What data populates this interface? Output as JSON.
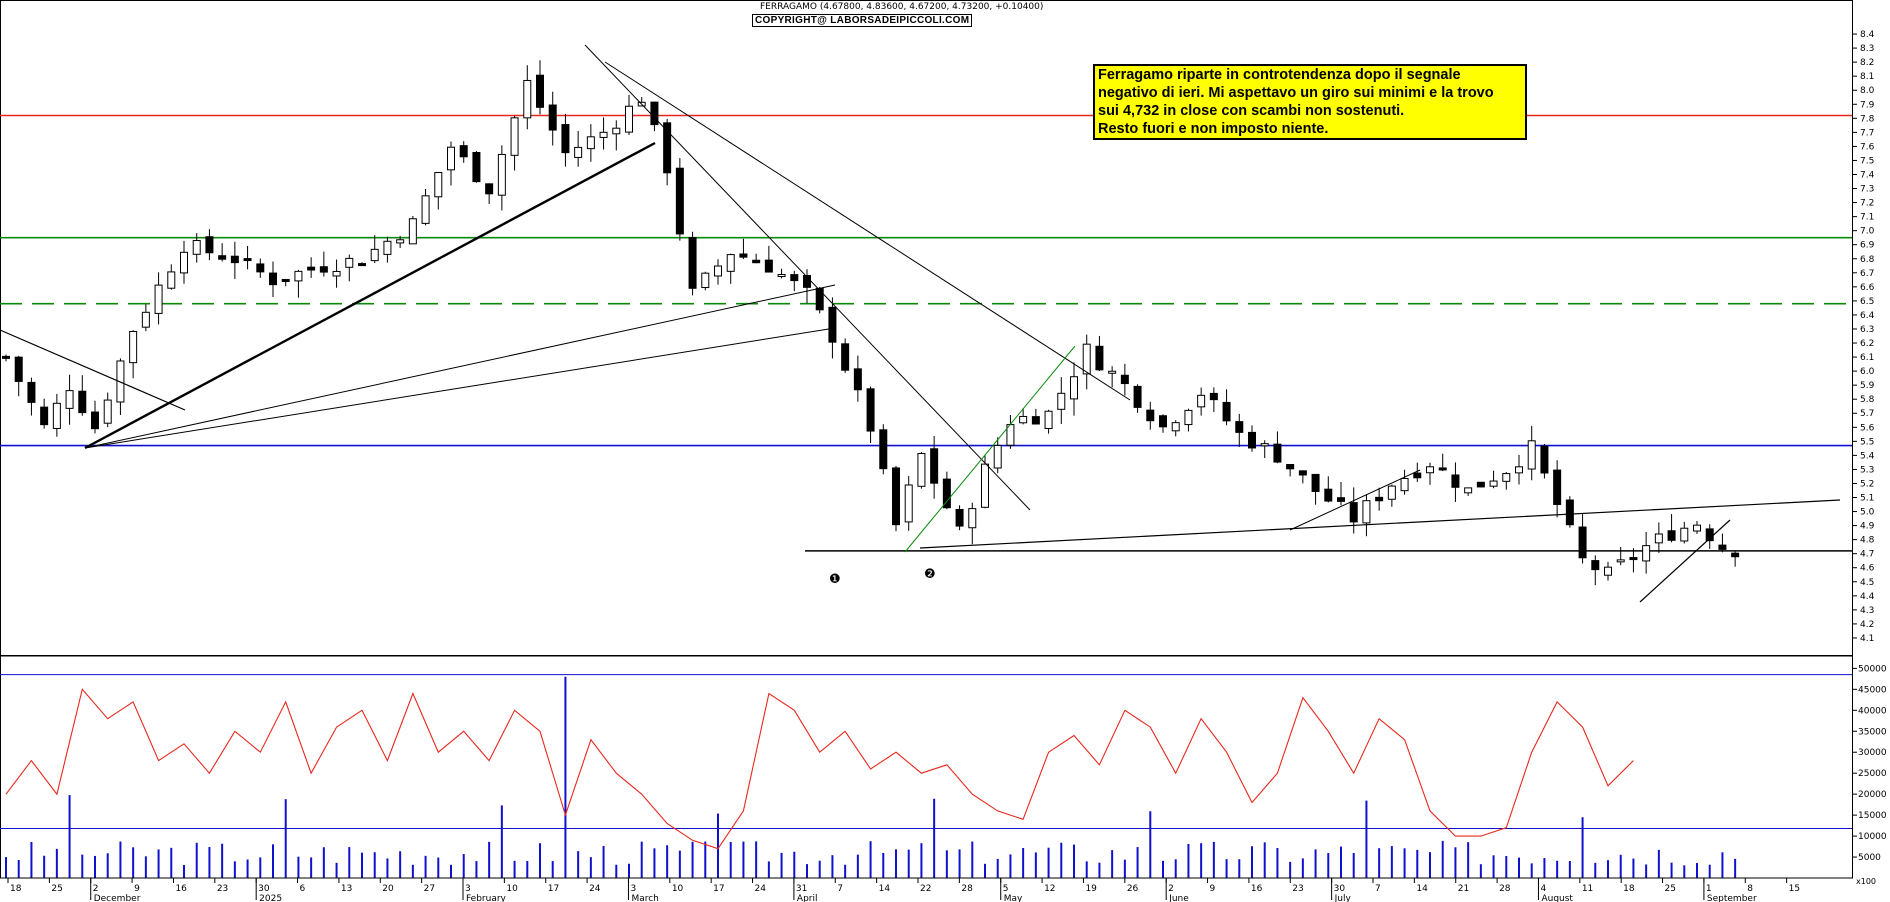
{
  "header": {
    "title": "FERRAGAMO (4.67800, 4.83600, 4.67200, 4.73200, +0.10400)",
    "copyright": "COPYRIGHT@ LABORSADEIPICCOLI.COM"
  },
  "note": {
    "lines": [
      "Ferragamo riparte in controtendenza dopo il segnale",
      "negativo di ieri. Mi aspettavo un giro sui minimi e la trovo",
      "sui 4,732 in close con scambi non sostenuti.",
      "Resto fuori e non imposto niente."
    ]
  },
  "markers": [
    "❶",
    "❷"
  ],
  "colors": {
    "candle": "#000000",
    "red_level": "#e8281e",
    "green_level": "#0a8a0a",
    "blue_level": "#1010d0",
    "oscillator": "#e8281e",
    "volume": "#1010d0",
    "note_bg": "#ffff00"
  },
  "chart_data": {
    "type": "candlestick",
    "price_axis": {
      "range": [
        4.0,
        8.5
      ],
      "ticks": [
        "4.1",
        "4.2",
        "4.3",
        "4.4",
        "4.5",
        "4.6",
        "4.7",
        "4.8",
        "4.9",
        "5.0",
        "5.1",
        "5.2",
        "5.3",
        "5.4",
        "5.5",
        "5.6",
        "5.7",
        "5.8",
        "5.9",
        "6.0",
        "6.1",
        "6.2",
        "6.3",
        "6.4",
        "6.5",
        "6.6",
        "6.7",
        "6.8",
        "6.9",
        "7.0",
        "7.1",
        "7.2",
        "7.3",
        "7.4",
        "7.5",
        "7.6",
        "7.7",
        "7.8",
        "7.9",
        "8.0",
        "8.1",
        "8.2",
        "8.3",
        "8.4"
      ]
    },
    "lower_axis": {
      "range": [
        0,
        52000
      ],
      "ticks": [
        "5000",
        "10000",
        "15000",
        "20000",
        "25000",
        "30000",
        "35000",
        "40000",
        "45000",
        "50000"
      ],
      "corner_label": "x100"
    },
    "x_day_ticks": [
      "18",
      "25",
      "2",
      "9",
      "16",
      "23",
      "30",
      "6",
      "13",
      "20",
      "27",
      "3",
      "10",
      "17",
      "24",
      "3",
      "10",
      "17",
      "24",
      "31",
      "7",
      "14",
      "22",
      "28",
      "5",
      "12",
      "19",
      "26",
      "2",
      "9",
      "16",
      "23",
      "30",
      "7",
      "14",
      "21",
      "28",
      "4",
      "11",
      "18",
      "25",
      "1",
      "8",
      "15"
    ],
    "x_month_labels": [
      "December",
      "2025",
      "February",
      "March",
      "April",
      "May",
      "June",
      "July",
      "August",
      "September"
    ],
    "horizontal_levels": [
      {
        "value": 7.82,
        "style": "solid",
        "color": "red"
      },
      {
        "value": 6.95,
        "style": "solid",
        "color": "green"
      },
      {
        "value": 6.48,
        "style": "dashed",
        "color": "green"
      },
      {
        "value": 5.47,
        "style": "solid",
        "color": "blue"
      },
      {
        "value": 4.72,
        "style": "solid",
        "color": "black"
      }
    ],
    "volume_reference_levels": [
      48500,
      11800
    ],
    "last_close": 4.732,
    "close_path": [
      [
        0,
        6.1
      ],
      [
        3,
        5.6
      ],
      [
        5,
        5.9
      ],
      [
        7,
        5.6
      ],
      [
        10,
        6.3
      ],
      [
        14,
        6.9
      ],
      [
        18,
        6.8
      ],
      [
        21,
        6.65
      ],
      [
        25,
        6.75
      ],
      [
        28,
        6.8
      ],
      [
        32,
        7.05
      ],
      [
        35,
        7.6
      ],
      [
        38,
        7.3
      ],
      [
        41,
        8.05
      ],
      [
        44,
        7.55
      ],
      [
        47,
        7.7
      ],
      [
        50,
        7.95
      ],
      [
        52,
        7.45
      ],
      [
        54,
        6.55
      ],
      [
        57,
        6.85
      ],
      [
        60,
        6.75
      ],
      [
        63,
        6.55
      ],
      [
        65,
        6.25
      ],
      [
        68,
        5.6
      ],
      [
        70,
        4.9
      ],
      [
        72,
        5.4
      ],
      [
        75,
        4.85
      ],
      [
        77,
        5.3
      ],
      [
        79,
        5.65
      ],
      [
        82,
        5.7
      ],
      [
        85,
        6.15
      ],
      [
        88,
        5.9
      ],
      [
        91,
        5.6
      ],
      [
        94,
        5.85
      ],
      [
        97,
        5.55
      ],
      [
        100,
        5.4
      ],
      [
        103,
        5.15
      ],
      [
        106,
        4.95
      ],
      [
        109,
        5.2
      ],
      [
        112,
        5.35
      ],
      [
        115,
        5.15
      ],
      [
        118,
        5.3
      ],
      [
        120,
        5.45
      ],
      [
        122,
        5.05
      ],
      [
        124,
        4.65
      ],
      [
        126,
        4.55
      ],
      [
        129,
        4.75
      ],
      [
        131,
        4.85
      ],
      [
        133,
        4.92
      ],
      [
        135,
        4.75
      ],
      [
        136,
        4.73
      ]
    ],
    "oscillator_path": [
      [
        0,
        20000
      ],
      [
        2,
        28000
      ],
      [
        4,
        20000
      ],
      [
        6,
        45000
      ],
      [
        8,
        38000
      ],
      [
        10,
        42000
      ],
      [
        12,
        28000
      ],
      [
        14,
        32000
      ],
      [
        16,
        25000
      ],
      [
        18,
        35000
      ],
      [
        20,
        30000
      ],
      [
        22,
        42000
      ],
      [
        24,
        25000
      ],
      [
        26,
        36000
      ],
      [
        28,
        40000
      ],
      [
        30,
        28000
      ],
      [
        32,
        44000
      ],
      [
        34,
        30000
      ],
      [
        36,
        35000
      ],
      [
        38,
        28000
      ],
      [
        40,
        40000
      ],
      [
        42,
        35000
      ],
      [
        44,
        15000
      ],
      [
        46,
        33000
      ],
      [
        48,
        25000
      ],
      [
        50,
        20000
      ],
      [
        52,
        13000
      ],
      [
        54,
        9000
      ],
      [
        56,
        7000
      ],
      [
        58,
        16000
      ],
      [
        60,
        44000
      ],
      [
        62,
        40000
      ],
      [
        64,
        30000
      ],
      [
        66,
        35000
      ],
      [
        68,
        26000
      ],
      [
        70,
        30000
      ],
      [
        72,
        25000
      ],
      [
        74,
        27000
      ],
      [
        76,
        20000
      ],
      [
        78,
        16000
      ],
      [
        80,
        14000
      ],
      [
        82,
        30000
      ],
      [
        84,
        34000
      ],
      [
        86,
        27000
      ],
      [
        88,
        40000
      ],
      [
        90,
        36000
      ],
      [
        92,
        25000
      ],
      [
        94,
        38000
      ],
      [
        96,
        30000
      ],
      [
        98,
        18000
      ],
      [
        100,
        25000
      ],
      [
        102,
        43000
      ],
      [
        104,
        35000
      ],
      [
        106,
        25000
      ],
      [
        108,
        38000
      ],
      [
        110,
        33000
      ],
      [
        112,
        16000
      ],
      [
        114,
        10000
      ],
      [
        116,
        10000
      ],
      [
        118,
        12000
      ],
      [
        120,
        30000
      ],
      [
        122,
        42000
      ],
      [
        124,
        36000
      ],
      [
        126,
        22000
      ],
      [
        128,
        28000
      ]
    ]
  }
}
